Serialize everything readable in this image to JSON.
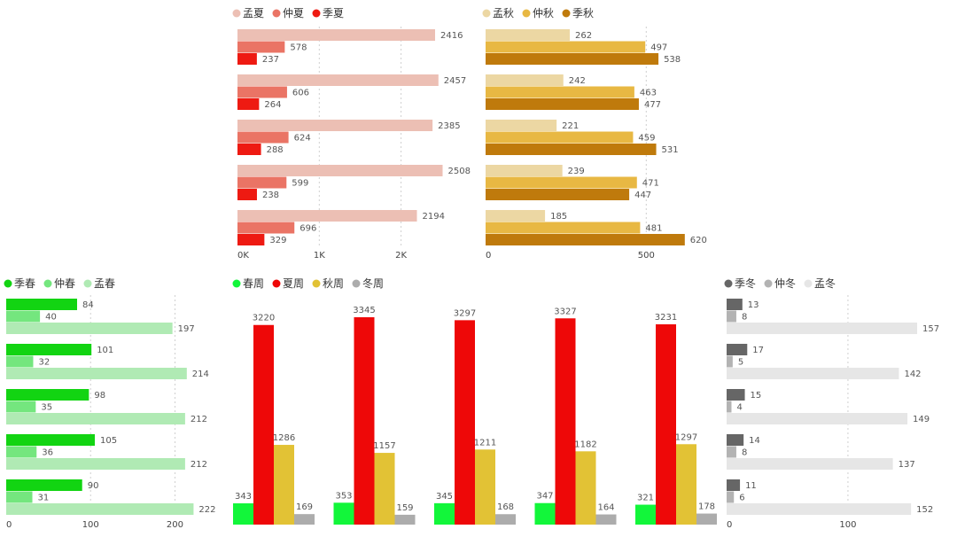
{
  "chart_data": [
    {
      "id": "summer",
      "type": "bar",
      "orientation": "horizontal",
      "groups": 5,
      "series": [
        {
          "name": "孟夏",
          "color": "#ecbfb4",
          "values": [
            2416,
            2457,
            2385,
            2508,
            2194
          ]
        },
        {
          "name": "仲夏",
          "color": "#ea7465",
          "values": [
            578,
            606,
            624,
            599,
            696
          ]
        },
        {
          "name": "季夏",
          "color": "#ee1a12",
          "values": [
            237,
            264,
            288,
            238,
            329
          ]
        }
      ],
      "xlim": [
        0,
        2800
      ],
      "ticks": [
        {
          "v": 0,
          "label": "0K"
        },
        {
          "v": 1000,
          "label": "1K"
        },
        {
          "v": 2000,
          "label": "2K"
        }
      ],
      "legend": "top-left",
      "grid": true
    },
    {
      "id": "autumn",
      "type": "bar",
      "orientation": "horizontal",
      "groups": 5,
      "series": [
        {
          "name": "孟秋",
          "color": "#ecd7a3",
          "values": [
            262,
            242,
            221,
            239,
            185
          ]
        },
        {
          "name": "仲秋",
          "color": "#e8b843",
          "values": [
            497,
            463,
            459,
            471,
            481
          ]
        },
        {
          "name": "季秋",
          "color": "#bf7a0c",
          "values": [
            538,
            477,
            531,
            447,
            620
          ]
        }
      ],
      "xlim": [
        0,
        720
      ],
      "ticks": [
        {
          "v": 0,
          "label": "0"
        },
        {
          "v": 500,
          "label": "500"
        }
      ],
      "legend": "top-left",
      "grid": true
    },
    {
      "id": "spring",
      "type": "bar",
      "orientation": "horizontal",
      "groups": 5,
      "series": [
        {
          "name": "季春",
          "color": "#12d412",
          "values": [
            84,
            101,
            98,
            105,
            90
          ]
        },
        {
          "name": "仲春",
          "color": "#74e67e",
          "values": [
            40,
            32,
            35,
            36,
            31
          ]
        },
        {
          "name": "孟春",
          "color": "#b0eab4",
          "values": [
            197,
            214,
            212,
            212,
            222
          ]
        }
      ],
      "xlim": [
        0,
        250
      ],
      "ticks": [
        {
          "v": 0,
          "label": "0"
        },
        {
          "v": 100,
          "label": "100"
        },
        {
          "v": 200,
          "label": "200"
        }
      ],
      "legend": "top-left",
      "grid": true
    },
    {
      "id": "seasons",
      "type": "bar",
      "orientation": "vertical",
      "groups": 5,
      "series": [
        {
          "name": "春周",
          "color": "#12f63a",
          "values": [
            343,
            353,
            345,
            347,
            321
          ]
        },
        {
          "name": "夏周",
          "color": "#ee0808",
          "values": [
            3220,
            3345,
            3297,
            3327,
            3231
          ]
        },
        {
          "name": "秋周",
          "color": "#e2c235",
          "values": [
            1286,
            1157,
            1211,
            1182,
            1297
          ]
        },
        {
          "name": "冬周",
          "color": "#acacac",
          "values": [
            169,
            159,
            168,
            164,
            178
          ]
        }
      ],
      "ylim": [
        0,
        3345
      ],
      "legend": "top-left",
      "grid": false
    },
    {
      "id": "winter",
      "type": "bar",
      "orientation": "horizontal",
      "groups": 5,
      "series": [
        {
          "name": "季冬",
          "color": "#666666",
          "values": [
            13,
            17,
            15,
            14,
            11
          ]
        },
        {
          "name": "仲冬",
          "color": "#b3b3b3",
          "values": [
            8,
            5,
            4,
            8,
            6
          ]
        },
        {
          "name": "孟冬",
          "color": "#e6e6e6",
          "values": [
            157,
            142,
            149,
            137,
            152
          ]
        }
      ],
      "xlim": [
        0,
        180
      ],
      "ticks": [
        {
          "v": 0,
          "label": "0"
        },
        {
          "v": 100,
          "label": "100"
        }
      ],
      "legend": "top-left",
      "grid": true
    }
  ]
}
